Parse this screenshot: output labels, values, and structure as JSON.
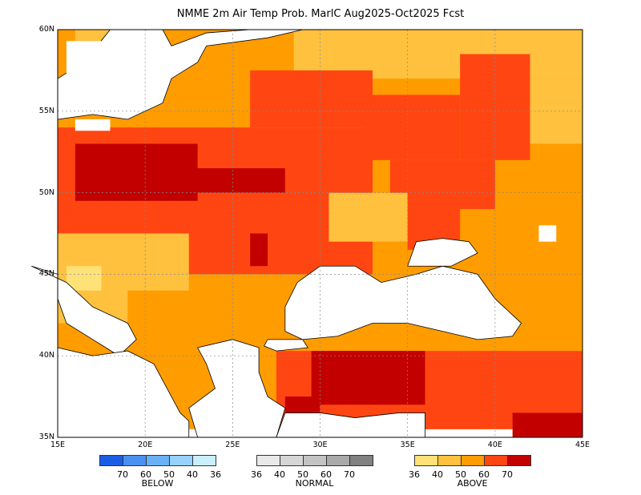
{
  "title": "NMME 2m Air Temp Prob. MarlC  Aug2025-Oct2025 Fcst",
  "map": {
    "lon_range": [
      15,
      45
    ],
    "lat_range": [
      35,
      60
    ],
    "lat_labels": [
      {
        "value": 60,
        "text": "60N"
      },
      {
        "value": 55,
        "text": "55N"
      },
      {
        "value": 50,
        "text": "50N"
      },
      {
        "value": 45,
        "text": "45N"
      },
      {
        "value": 40,
        "text": "40N"
      },
      {
        "value": 35,
        "text": "35N"
      }
    ],
    "lon_labels": [
      {
        "value": 15,
        "text": "15E"
      },
      {
        "value": 20,
        "text": "20E"
      },
      {
        "value": 25,
        "text": "25E"
      },
      {
        "value": 30,
        "text": "30E"
      },
      {
        "value": 35,
        "text": "35E"
      },
      {
        "value": 40,
        "text": "40E"
      },
      {
        "value": 45,
        "text": "45E"
      }
    ],
    "grid_lines": true,
    "colors": {
      "above_36_40": "#ffe277",
      "above_40_50": "#ffc13e",
      "above_50_60": "#ff9c00",
      "above_60_70": "#ff4612",
      "above_70": "#c30000",
      "water": "#ffffff"
    },
    "regions": [
      {
        "level": 50,
        "lon": [
          15,
          45
        ],
        "lat": [
          35.5,
          60
        ]
      },
      {
        "level": 40,
        "lon": [
          28.5,
          45
        ],
        "lat": [
          57,
          60
        ]
      },
      {
        "level": 40,
        "lon": [
          40,
          45
        ],
        "lat": [
          53,
          57
        ]
      },
      {
        "level": 40,
        "lon": [
          16,
          19
        ],
        "lat": [
          58,
          60
        ]
      },
      {
        "level": 60,
        "lon": [
          15,
          33
        ],
        "lat": [
          45,
          54
        ]
      },
      {
        "level": 60,
        "lon": [
          26,
          33
        ],
        "lat": [
          54,
          57.5
        ]
      },
      {
        "level": 60,
        "lon": [
          32.5,
          38
        ],
        "lat": [
          52,
          56
        ]
      },
      {
        "level": 60,
        "lon": [
          38,
          42
        ],
        "lat": [
          52,
          58.5
        ]
      },
      {
        "level": 60,
        "lon": [
          34,
          40
        ],
        "lat": [
          49,
          52
        ]
      },
      {
        "level": 60,
        "lon": [
          35,
          38
        ],
        "lat": [
          46.5,
          49
        ]
      },
      {
        "level": 40,
        "lon": [
          30.5,
          35
        ],
        "lat": [
          47,
          50
        ]
      },
      {
        "level": 60,
        "lon": [
          27.5,
          45
        ],
        "lat": [
          35.5,
          40.3
        ]
      },
      {
        "level": 70,
        "lon": [
          16,
          23
        ],
        "lat": [
          49.5,
          53
        ]
      },
      {
        "level": 70,
        "lon": [
          22,
          28
        ],
        "lat": [
          50,
          51.5
        ]
      },
      {
        "level": 70,
        "lon": [
          29.5,
          36
        ],
        "lat": [
          37,
          40.3
        ]
      },
      {
        "level": 70,
        "lon": [
          28,
          30
        ],
        "lat": [
          36.5,
          37.5
        ]
      },
      {
        "level": 70,
        "lon": [
          26,
          27
        ],
        "lat": [
          45.5,
          47.5
        ]
      },
      {
        "level": 40,
        "lon": [
          15,
          22.5
        ],
        "lat": [
          42,
          47.5
        ]
      },
      {
        "level": 36,
        "lon": [
          15.5,
          17.5
        ],
        "lat": [
          44,
          45.5
        ]
      },
      {
        "level": 50,
        "lon": [
          19,
          26
        ],
        "lat": [
          40,
          44
        ]
      },
      {
        "level": 70,
        "lon": [
          41,
          45
        ],
        "lat": [
          35,
          36.5
        ]
      }
    ],
    "water_areas": [
      {
        "name": "black-sea",
        "points": [
          [
            28,
            41.5
          ],
          [
            28,
            43
          ],
          [
            28.7,
            44.5
          ],
          [
            30,
            45.5
          ],
          [
            32,
            45.5
          ],
          [
            33.5,
            44.5
          ],
          [
            35.5,
            45
          ],
          [
            37,
            45.5
          ],
          [
            39,
            45
          ],
          [
            40,
            43.5
          ],
          [
            41.5,
            42
          ],
          [
            41,
            41.2
          ],
          [
            39,
            41
          ],
          [
            37,
            41.5
          ],
          [
            35,
            42
          ],
          [
            33,
            42
          ],
          [
            31,
            41.2
          ],
          [
            29,
            41
          ]
        ]
      },
      {
        "name": "azov-sea",
        "points": [
          [
            35,
            45.5
          ],
          [
            35.5,
            47
          ],
          [
            37,
            47.2
          ],
          [
            38.5,
            47
          ],
          [
            39,
            46.3
          ],
          [
            37.5,
            45.5
          ]
        ]
      },
      {
        "name": "baltic-sea",
        "points": [
          [
            15,
            54.5
          ],
          [
            15,
            57
          ],
          [
            16.5,
            58
          ],
          [
            18,
            60
          ],
          [
            21,
            60
          ],
          [
            21.5,
            59
          ],
          [
            23.5,
            59.8
          ],
          [
            26,
            60
          ],
          [
            29,
            60
          ],
          [
            27,
            59.5
          ],
          [
            23.5,
            59
          ],
          [
            23,
            58
          ],
          [
            21.5,
            57
          ],
          [
            21,
            55.5
          ],
          [
            19,
            54.5
          ],
          [
            17,
            54.8
          ]
        ]
      },
      {
        "name": "adriatic-sea",
        "points": [
          [
            15,
            43.5
          ],
          [
            15,
            45
          ],
          [
            13.5,
            45.5
          ],
          [
            15.5,
            44.5
          ],
          [
            17,
            43
          ],
          [
            19,
            42
          ],
          [
            19.5,
            41
          ],
          [
            18.5,
            40
          ],
          [
            17,
            41
          ],
          [
            15.5,
            42
          ]
        ]
      },
      {
        "name": "ionian-sea",
        "points": [
          [
            15,
            35
          ],
          [
            15,
            40.5
          ],
          [
            17,
            40
          ],
          [
            19,
            40.3
          ],
          [
            20.5,
            39.5
          ],
          [
            21.5,
            37.5
          ],
          [
            22,
            36.5
          ],
          [
            22.5,
            36
          ],
          [
            22.5,
            35
          ]
        ]
      },
      {
        "name": "aegean-sea",
        "points": [
          [
            23,
            35
          ],
          [
            22.5,
            36.8
          ],
          [
            24,
            38
          ],
          [
            23.5,
            39.5
          ],
          [
            23,
            40.5
          ],
          [
            25,
            41
          ],
          [
            26.5,
            40.5
          ],
          [
            26.5,
            39
          ],
          [
            27,
            37.5
          ],
          [
            28,
            36.8
          ],
          [
            27.5,
            35
          ]
        ]
      },
      {
        "name": "levant-sea",
        "points": [
          [
            27.5,
            35
          ],
          [
            28,
            36.5
          ],
          [
            30,
            36.5
          ],
          [
            32,
            36.2
          ],
          [
            34.5,
            36.5
          ],
          [
            36,
            36.5
          ],
          [
            36,
            35
          ]
        ]
      },
      {
        "name": "marmara-sea",
        "points": [
          [
            26.8,
            40.6
          ],
          [
            27,
            41
          ],
          [
            29,
            41
          ],
          [
            29.3,
            40.5
          ],
          [
            27.5,
            40.3
          ]
        ]
      }
    ],
    "gap_cells": [
      {
        "lon": [
          42.5,
          43.5
        ],
        "lat": [
          47,
          48
        ]
      },
      {
        "lon": [
          16,
          18
        ],
        "lat": [
          53.8,
          54.5
        ]
      },
      {
        "lon": [
          15.5,
          17.5
        ],
        "lat": [
          57.3,
          59.3
        ]
      }
    ]
  },
  "legend": {
    "below": {
      "name": "BELOW",
      "colors": [
        "#1a5ee6",
        "#4a90f0",
        "#6ab0f8",
        "#96d2fa",
        "#c8f0fc"
      ],
      "ticks": [
        "70",
        "60",
        "50",
        "40",
        "36"
      ]
    },
    "normal": {
      "name": "NORMAL",
      "colors": [
        "#e9e9e9",
        "#d6d6d6",
        "#c3c3c3",
        "#a9a9a9",
        "#818181"
      ],
      "ticks": [
        "36",
        "40",
        "50",
        "60",
        "70"
      ]
    },
    "above": {
      "name": "ABOVE",
      "colors": [
        "#ffe277",
        "#ffc13e",
        "#ff9c00",
        "#ff4612",
        "#c30000"
      ],
      "ticks": [
        "36",
        "40",
        "50",
        "60",
        "70"
      ]
    }
  }
}
